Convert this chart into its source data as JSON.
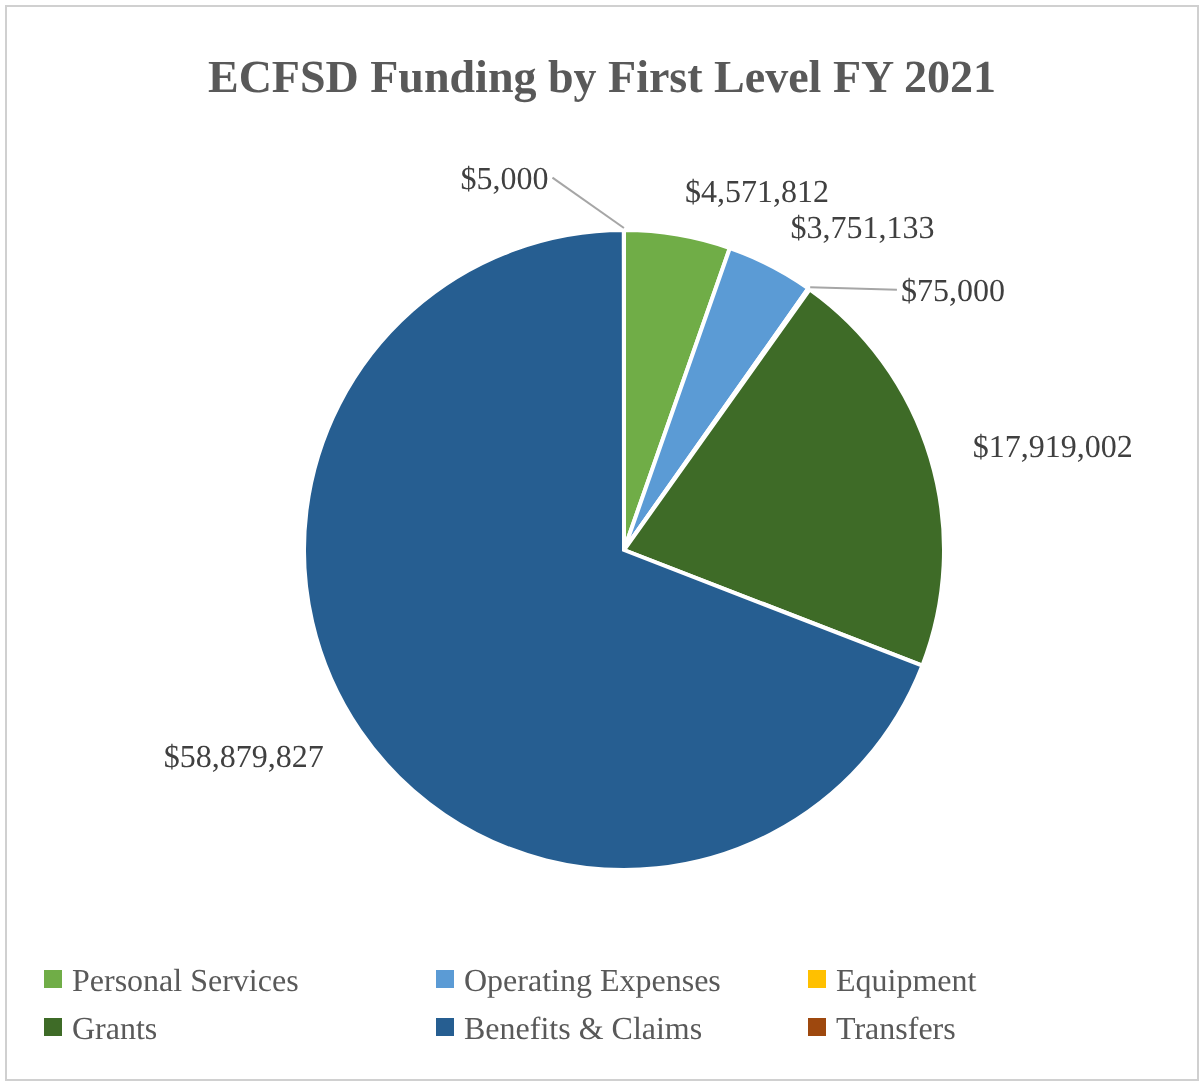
{
  "chart_data": {
    "type": "pie",
    "title": "ECFSD Funding by First Level FY 2021",
    "categories": [
      "Personal Services",
      "Operating Expenses",
      "Equipment",
      "Grants",
      "Benefits & Claims",
      "Transfers"
    ],
    "values": [
      4571812,
      3751133,
      75000,
      17919002,
      58879827,
      5000
    ],
    "colors": [
      "#70ad47",
      "#5b9bd5",
      "#ffc000",
      "#3e6b27",
      "#265e91",
      "#9e480e"
    ],
    "value_labels": [
      "$4,571,812",
      "$3,751,133",
      "$75,000",
      "$17,919,002",
      "$58,879,827",
      "$5,000"
    ],
    "legend": "bottom"
  }
}
